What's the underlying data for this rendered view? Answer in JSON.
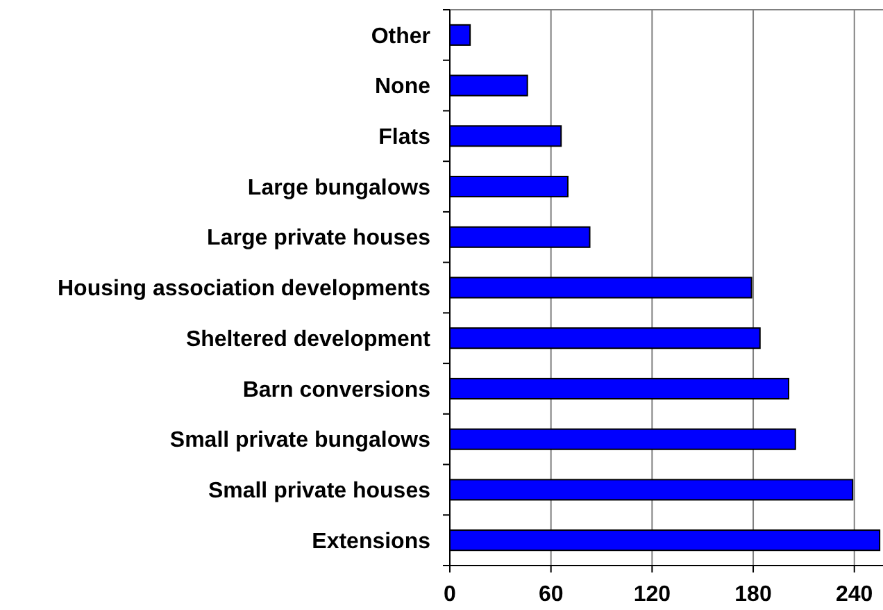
{
  "chart_data": {
    "type": "bar",
    "orientation": "horizontal",
    "categories": [
      "Other",
      "None",
      "Flats",
      "Large bungalows",
      "Large private houses",
      "Housing association developments",
      "Sheltered development",
      "Barn conversions",
      "Small private bungalows",
      "Small private houses",
      "Extensions"
    ],
    "values": [
      12,
      46,
      66,
      70,
      83,
      179,
      184,
      201,
      205,
      239,
      255
    ],
    "color": "#0000ff",
    "xlim": [
      0,
      257
    ],
    "xticks": [
      0,
      60,
      120,
      180,
      240
    ],
    "grid": "x"
  }
}
